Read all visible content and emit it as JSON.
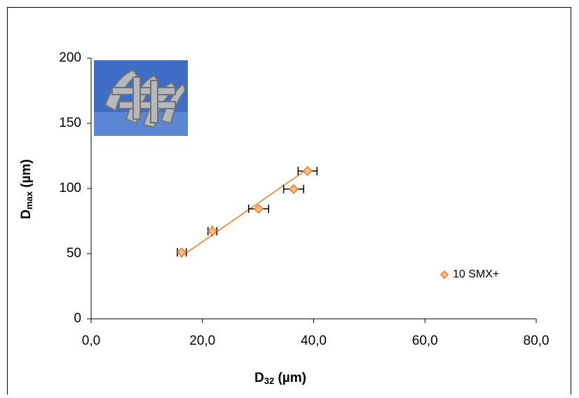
{
  "chart_data": {
    "type": "scatter",
    "xlabel": [
      "D",
      "32",
      " (µm)"
    ],
    "ylabel": [
      "D",
      "max",
      " (µm)"
    ],
    "series": [
      {
        "name": "10 SMX+",
        "color": "#f07a1e",
        "fill": "#fbbf87",
        "x": [
          16.3,
          21.8,
          30.1,
          36.4,
          38.9
        ],
        "values": [
          51,
          67.2,
          84.4,
          99.5,
          113.4
        ],
        "x_errors": [
          0.8,
          0.8,
          1.8,
          1.8,
          1.7
        ],
        "y_errors": [
          3,
          4,
          1.5,
          1.5,
          1.5
        ]
      }
    ],
    "fit_line": {
      "x": [
        16.0,
        39.1
      ],
      "y": [
        47.3,
        115.6
      ],
      "color": "#f07a1e"
    },
    "xlim": [
      0,
      80
    ],
    "xticks": [
      {
        "value": 0,
        "label": "0,0"
      },
      {
        "value": 20,
        "label": "20,0"
      },
      {
        "value": 40,
        "label": "40,0"
      },
      {
        "value": 60,
        "label": "60,0"
      },
      {
        "value": 80,
        "label": "80,0"
      }
    ],
    "ylim": [
      0,
      200
    ],
    "yticks": [
      0,
      50,
      100,
      150,
      200
    ],
    "grid": false,
    "legend": "right"
  }
}
